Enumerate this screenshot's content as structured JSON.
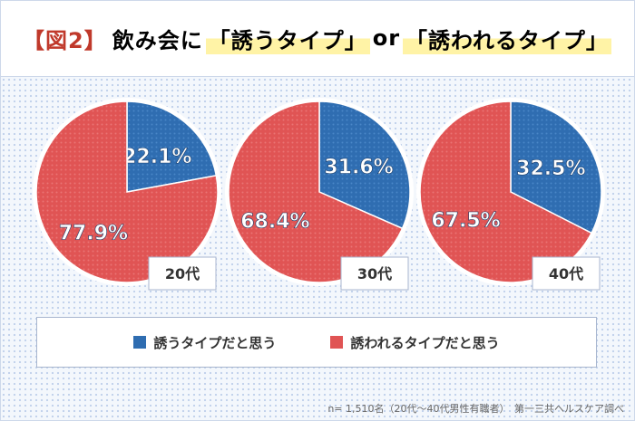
{
  "title": {
    "lead": "【図2】",
    "pre": "飲み会に",
    "opt1": "「誘うタイプ」",
    "mid": "or",
    "opt2": "「誘われるタイプ」",
    "lead_color": "#c0392b"
  },
  "chart_data": {
    "type": "pie",
    "charts": [
      {
        "label": "20代",
        "values": [
          22.1,
          77.9
        ],
        "labels": [
          "22.1%",
          "77.9%"
        ]
      },
      {
        "label": "30代",
        "values": [
          31.6,
          68.4
        ],
        "labels": [
          "31.6%",
          "68.4%"
        ]
      },
      {
        "label": "40代",
        "values": [
          32.5,
          67.5
        ],
        "labels": [
          "32.5%",
          "67.5%"
        ]
      }
    ],
    "series": [
      {
        "name": "誘うタイプだと思う",
        "color": "#2f6db1"
      },
      {
        "name": "誘われるタイプだと思う",
        "color": "#e05454"
      }
    ]
  },
  "source": "n= 1,510名（20代〜40代男性有職者）　第一三共ヘルスケア調べ"
}
